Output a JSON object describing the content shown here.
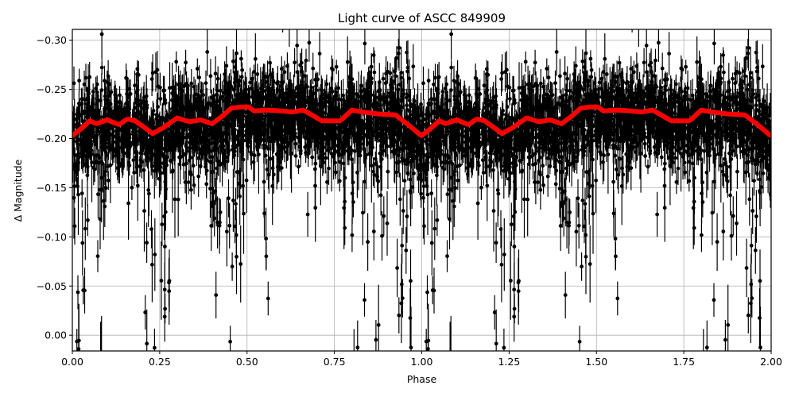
{
  "chart_data": {
    "type": "scatter",
    "title": "Light curve of ASCC 849909",
    "xlabel": "Phase",
    "ylabel": "Δ Magnitude",
    "xlim": [
      0.0,
      2.0
    ],
    "ylim": [
      0.016,
      -0.311
    ],
    "y_inverted": true,
    "grid": true,
    "legend": null,
    "x_ticks": [
      "0.00",
      "0.25",
      "0.50",
      "0.75",
      "1.00",
      "1.25",
      "1.50",
      "1.75",
      "2.00"
    ],
    "x_tick_values": [
      0.0,
      0.25,
      0.5,
      0.75,
      1.0,
      1.25,
      1.5,
      1.75,
      2.0
    ],
    "y_ticks": [
      "−0.30",
      "−0.25",
      "−0.20",
      "−0.15",
      "−0.10",
      "−0.05",
      "0.00"
    ],
    "y_tick_values": [
      -0.3,
      -0.25,
      -0.2,
      -0.15,
      -0.1,
      -0.05,
      0.0
    ],
    "series": [
      {
        "name": "observations (with error bars)",
        "style": "black points with vertical error bars",
        "color": "#000000",
        "description": "Dense scatter, bulk between -0.27 and -0.17 mag; tail extends toward 0.00 mag with large errors (~0.02-0.05); sparse outliers to -0.30",
        "band_core": [
          -0.26,
          -0.18
        ],
        "outlier_extent": [
          -0.31,
          0.016
        ],
        "faint_tail_dense_phases": [
          0.02,
          0.08,
          0.22,
          0.26,
          0.42,
          0.47,
          0.55,
          0.82,
          0.88,
          0.95
        ]
      },
      {
        "name": "binned mean",
        "style": "thick red line",
        "color": "#ff0000",
        "phase": [
          0.0,
          0.025,
          0.05,
          0.068,
          0.1,
          0.134,
          0.157,
          0.18,
          0.23,
          0.26,
          0.3,
          0.335,
          0.367,
          0.4,
          0.43,
          0.455,
          0.48,
          0.505,
          0.52,
          0.56,
          0.6,
          0.63,
          0.66,
          0.68,
          0.714,
          0.767,
          0.8,
          0.83,
          0.876,
          0.925,
          0.965,
          0.998
        ],
        "values": [
          -0.203,
          -0.21,
          -0.218,
          -0.215,
          -0.219,
          -0.214,
          -0.22,
          -0.218,
          -0.205,
          -0.211,
          -0.221,
          -0.217,
          -0.219,
          -0.215,
          -0.223,
          -0.231,
          -0.232,
          -0.232,
          -0.228,
          -0.229,
          -0.228,
          -0.227,
          -0.229,
          -0.225,
          -0.218,
          -0.218,
          -0.229,
          -0.227,
          -0.225,
          -0.224,
          -0.213,
          -0.203
        ],
        "periodic": true,
        "period": 1.0
      }
    ]
  },
  "figure": {
    "title": "Light curve of ASCC 849909",
    "xlabel": "Phase",
    "ylabel": "Δ Magnitude"
  }
}
